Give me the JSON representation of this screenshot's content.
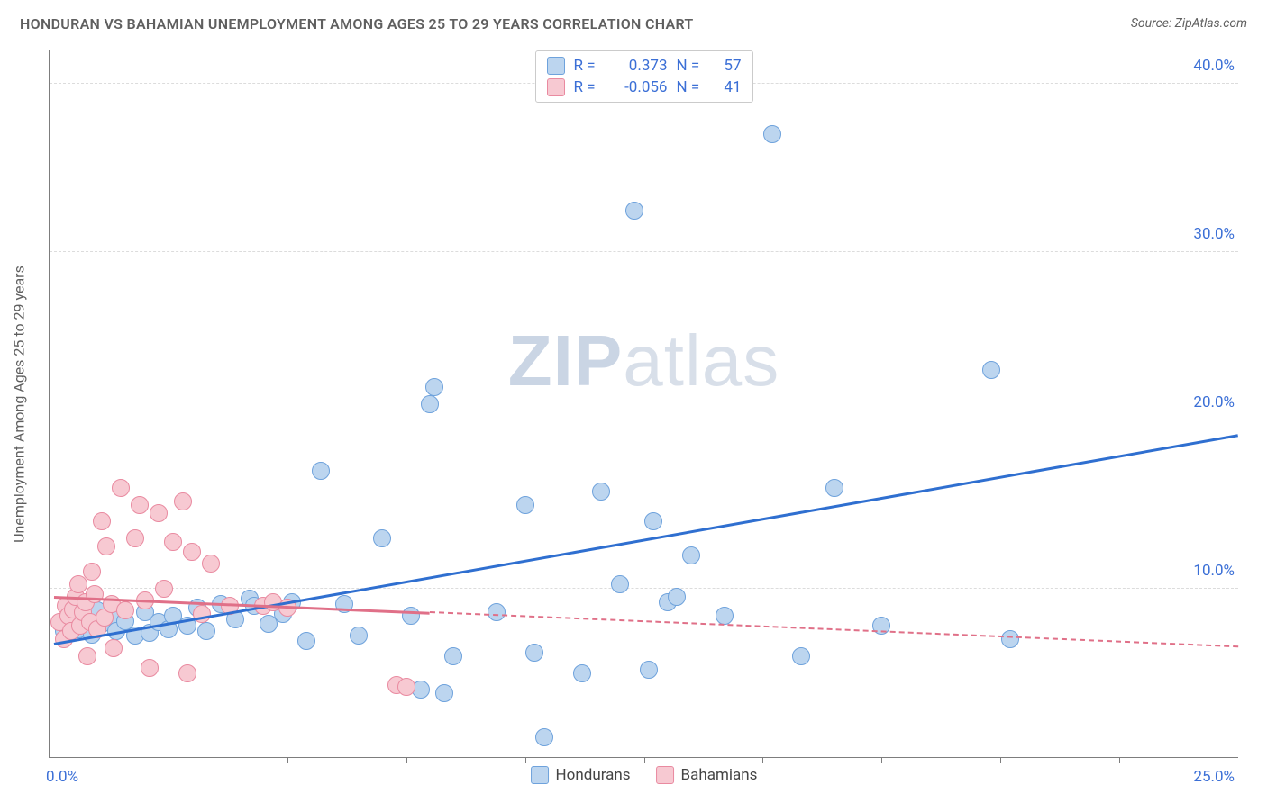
{
  "title": "HONDURAN VS BAHAMIAN UNEMPLOYMENT AMONG AGES 25 TO 29 YEARS CORRELATION CHART",
  "source": "Source: ZipAtlas.com",
  "chart": {
    "type": "scatter",
    "xlim": [
      0,
      25
    ],
    "ylim": [
      0,
      42
    ],
    "x_origin_label": "0.0%",
    "x_max_label": "25.0%",
    "y_ticks": [
      10,
      20,
      30,
      40
    ],
    "y_tick_labels": [
      "10.0%",
      "20.0%",
      "30.0%",
      "40.0%"
    ],
    "y_tick_color": "#3b6fd6",
    "x_origin_color": "#3b6fd6",
    "x_max_color": "#3b6fd6",
    "x_minor_tick_positions": [
      2.5,
      5.0,
      7.5,
      10.0,
      12.5,
      15.0,
      17.5,
      20.0,
      22.5
    ],
    "yaxis_title": "Unemployment Among Ages 25 to 29 years",
    "yaxis_title_color": "#5f5f5f",
    "grid_color": "#dcdcdc",
    "background_color": "#ffffff",
    "axis_color": "#7d7d7d",
    "watermark_text_bold": "ZIP",
    "watermark_text_rest": "atlas",
    "series": [
      {
        "name": "Hondurans",
        "marker_color_fill": "#bcd5ef",
        "marker_color_stroke": "#6ea2dc",
        "marker_radius_px": 10,
        "trend_color": "#2f6fd0",
        "trend": {
          "x1": 0.1,
          "y1": 6.8,
          "x2": 25.0,
          "y2": 19.2,
          "dash_after_x": null
        },
        "R": "0.373",
        "N": "57",
        "points": [
          [
            0.3,
            7.5
          ],
          [
            0.5,
            8.3
          ],
          [
            0.6,
            7.6
          ],
          [
            0.8,
            8.0
          ],
          [
            0.9,
            7.3
          ],
          [
            1.0,
            8.7
          ],
          [
            1.1,
            7.9
          ],
          [
            1.3,
            8.4
          ],
          [
            1.4,
            7.5
          ],
          [
            1.6,
            8.1
          ],
          [
            1.8,
            7.2
          ],
          [
            2.0,
            8.6
          ],
          [
            2.1,
            7.4
          ],
          [
            2.3,
            8.0
          ],
          [
            2.5,
            7.6
          ],
          [
            2.6,
            8.4
          ],
          [
            2.9,
            7.8
          ],
          [
            3.1,
            8.9
          ],
          [
            3.3,
            7.5
          ],
          [
            3.6,
            9.1
          ],
          [
            3.9,
            8.2
          ],
          [
            4.2,
            9.4
          ],
          [
            4.3,
            9.0
          ],
          [
            4.6,
            7.9
          ],
          [
            4.9,
            8.5
          ],
          [
            5.1,
            9.2
          ],
          [
            5.4,
            6.9
          ],
          [
            5.7,
            17.0
          ],
          [
            6.2,
            9.1
          ],
          [
            6.5,
            7.2
          ],
          [
            7.0,
            13.0
          ],
          [
            7.6,
            8.4
          ],
          [
            7.8,
            4.0
          ],
          [
            8.0,
            21.0
          ],
          [
            8.1,
            22.0
          ],
          [
            8.3,
            3.8
          ],
          [
            8.5,
            6.0
          ],
          [
            9.4,
            8.6
          ],
          [
            10.0,
            15.0
          ],
          [
            10.2,
            6.2
          ],
          [
            10.4,
            1.2
          ],
          [
            11.2,
            5.0
          ],
          [
            11.6,
            15.8
          ],
          [
            12.0,
            10.3
          ],
          [
            12.3,
            32.5
          ],
          [
            12.6,
            5.2
          ],
          [
            12.7,
            14.0
          ],
          [
            13.0,
            9.2
          ],
          [
            13.2,
            9.5
          ],
          [
            13.5,
            12.0
          ],
          [
            14.2,
            8.4
          ],
          [
            15.2,
            37.0
          ],
          [
            15.8,
            6.0
          ],
          [
            16.5,
            16.0
          ],
          [
            17.5,
            7.8
          ],
          [
            19.8,
            23.0
          ],
          [
            20.2,
            7.0
          ]
        ]
      },
      {
        "name": "Bahamians",
        "marker_color_fill": "#f7c9d2",
        "marker_color_stroke": "#e98aa0",
        "marker_radius_px": 10,
        "trend_color": "#e07088",
        "trend": {
          "x1": 0.1,
          "y1": 9.6,
          "x2": 25.0,
          "y2": 6.6,
          "dash_after_x": 8.0
        },
        "R": "-0.056",
        "N": "41",
        "points": [
          [
            0.2,
            8.0
          ],
          [
            0.3,
            7.0
          ],
          [
            0.35,
            9.0
          ],
          [
            0.4,
            8.4
          ],
          [
            0.45,
            7.5
          ],
          [
            0.5,
            8.8
          ],
          [
            0.55,
            9.5
          ],
          [
            0.6,
            10.3
          ],
          [
            0.65,
            7.8
          ],
          [
            0.7,
            8.6
          ],
          [
            0.75,
            9.2
          ],
          [
            0.8,
            6.0
          ],
          [
            0.85,
            8.0
          ],
          [
            0.9,
            11.0
          ],
          [
            0.95,
            9.7
          ],
          [
            1.0,
            7.6
          ],
          [
            1.1,
            14.0
          ],
          [
            1.15,
            8.3
          ],
          [
            1.2,
            12.5
          ],
          [
            1.3,
            9.1
          ],
          [
            1.35,
            6.5
          ],
          [
            1.5,
            16.0
          ],
          [
            1.6,
            8.7
          ],
          [
            1.8,
            13.0
          ],
          [
            1.9,
            15.0
          ],
          [
            2.0,
            9.3
          ],
          [
            2.1,
            5.3
          ],
          [
            2.3,
            14.5
          ],
          [
            2.4,
            10.0
          ],
          [
            2.6,
            12.8
          ],
          [
            2.8,
            15.2
          ],
          [
            2.9,
            5.0
          ],
          [
            3.0,
            12.2
          ],
          [
            3.2,
            8.5
          ],
          [
            3.4,
            11.5
          ],
          [
            3.8,
            9.0
          ],
          [
            4.5,
            9.0
          ],
          [
            4.7,
            9.2
          ],
          [
            5.0,
            8.9
          ],
          [
            7.3,
            4.3
          ],
          [
            7.5,
            4.2
          ]
        ]
      }
    ],
    "legend_top": {
      "r_label": "R =",
      "n_label": "N ="
    },
    "legend_bottom": {
      "items": [
        "Hondurans",
        "Bahamians"
      ]
    }
  }
}
